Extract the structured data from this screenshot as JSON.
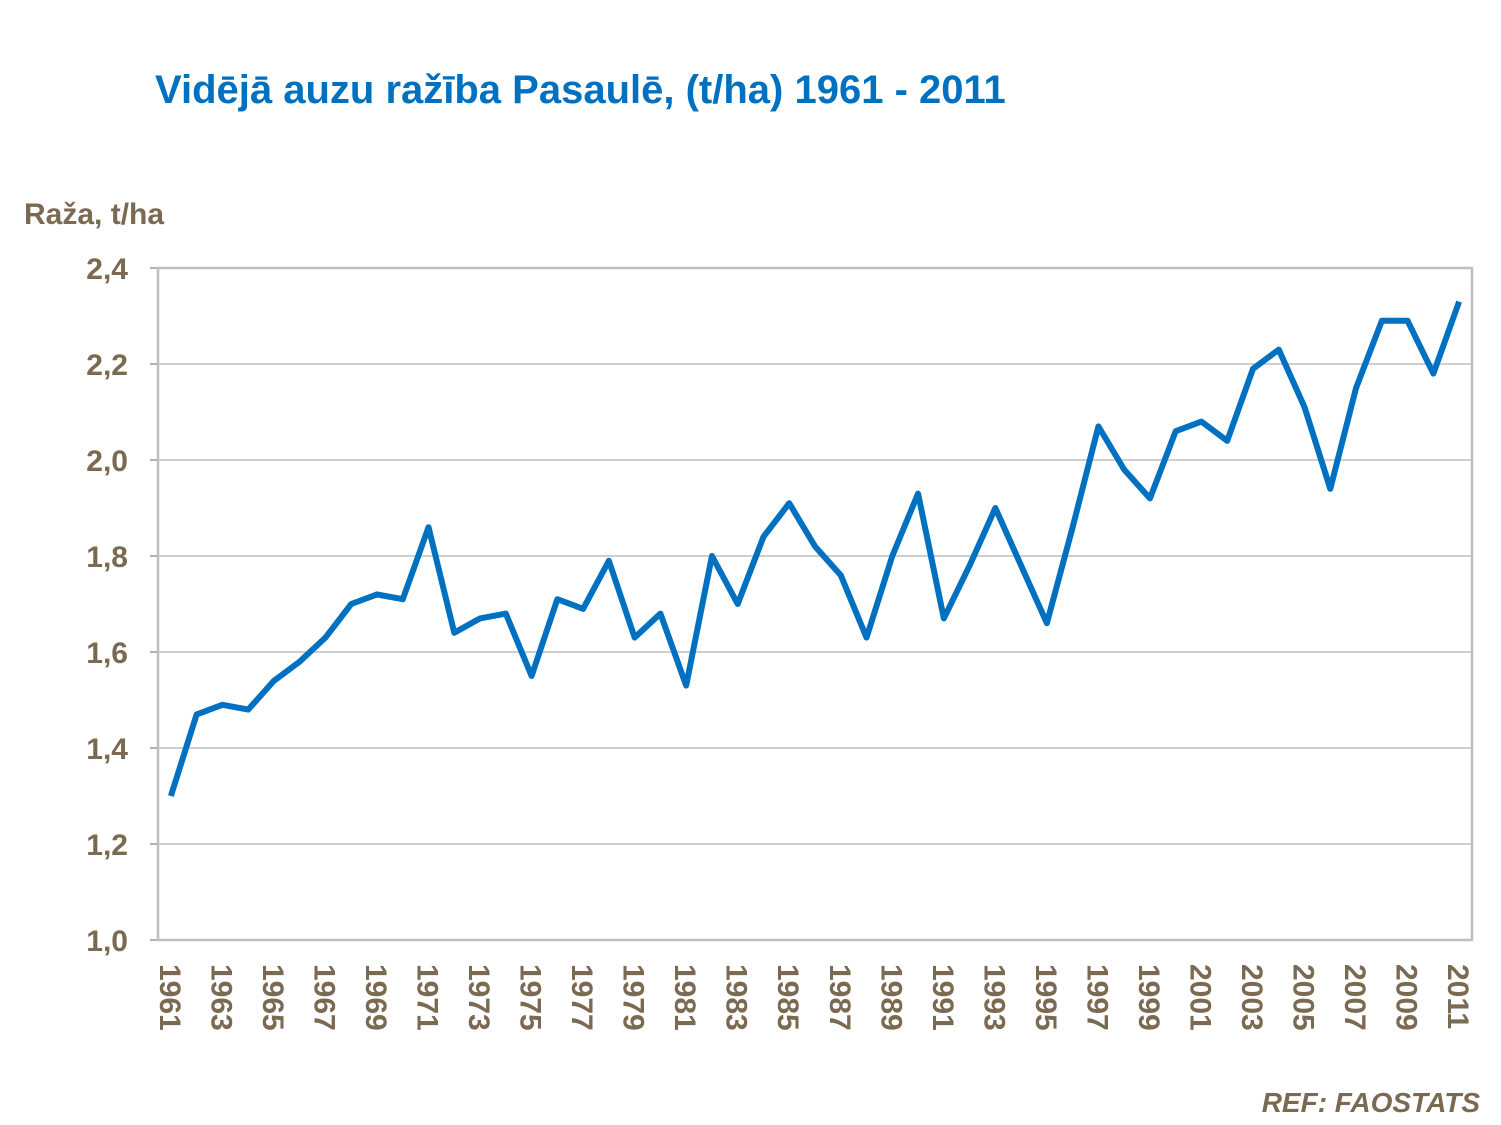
{
  "chart_data": {
    "type": "line",
    "title": "Vidējā auzu ražība Pasaulē, (t/ha) 1961 - 2011",
    "y_label": "Raža, t/ha",
    "source": "REF: FAOSTATS",
    "x": [
      1961,
      1962,
      1963,
      1964,
      1965,
      1966,
      1967,
      1968,
      1969,
      1970,
      1971,
      1972,
      1973,
      1974,
      1975,
      1976,
      1977,
      1978,
      1979,
      1980,
      1981,
      1982,
      1983,
      1984,
      1985,
      1986,
      1987,
      1988,
      1989,
      1990,
      1991,
      1992,
      1993,
      1994,
      1995,
      1996,
      1997,
      1998,
      1999,
      2000,
      2001,
      2002,
      2003,
      2004,
      2005,
      2006,
      2007,
      2008,
      2009,
      2010,
      2011
    ],
    "series": [
      {
        "color": "#0070c0",
        "values": [
          1.3,
          1.47,
          1.49,
          1.48,
          1.54,
          1.58,
          1.63,
          1.7,
          1.72,
          1.71,
          1.86,
          1.64,
          1.67,
          1.68,
          1.55,
          1.71,
          1.69,
          1.79,
          1.63,
          1.68,
          1.53,
          1.8,
          1.7,
          1.84,
          1.91,
          1.82,
          1.76,
          1.63,
          1.8,
          1.93,
          1.67,
          1.78,
          1.9,
          1.78,
          1.66,
          1.86,
          2.07,
          1.98,
          1.92,
          2.06,
          2.08,
          2.04,
          2.19,
          2.23,
          2.11,
          1.94,
          2.15,
          2.29,
          2.29,
          2.18,
          2.33
        ]
      }
    ],
    "xlim": [
      1960.5,
      2011.5
    ],
    "xticks": [
      1961,
      1963,
      1965,
      1967,
      1969,
      1971,
      1973,
      1975,
      1977,
      1979,
      1981,
      1983,
      1985,
      1987,
      1989,
      1991,
      1993,
      1995,
      1997,
      1999,
      2001,
      2003,
      2005,
      2007,
      2009,
      2011
    ],
    "ylim": [
      1.0,
      2.4
    ],
    "yticks": [
      {
        "value": 1.0,
        "label": "1,0"
      },
      {
        "value": 1.2,
        "label": "1,2"
      },
      {
        "value": 1.4,
        "label": "1,4"
      },
      {
        "value": 1.6,
        "label": "1,6"
      },
      {
        "value": 1.8,
        "label": "1,8"
      },
      {
        "value": 2.0,
        "label": "2,0"
      },
      {
        "value": 2.2,
        "label": "2,2"
      },
      {
        "value": 2.4,
        "label": "2,4"
      }
    ],
    "grid": true
  }
}
